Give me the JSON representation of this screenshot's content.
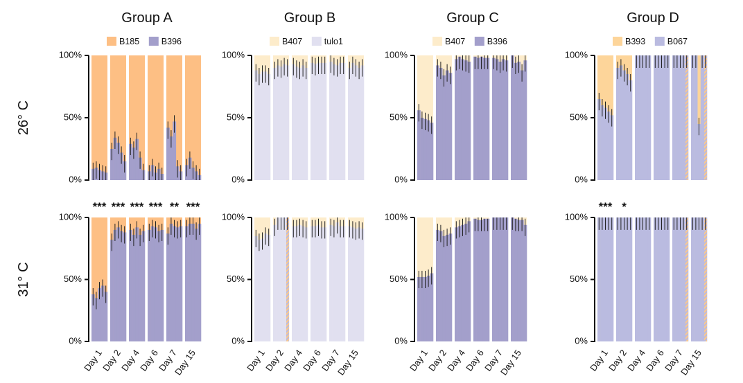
{
  "chart_data": {
    "type": "bar",
    "stacked": true,
    "percent": true,
    "yticks": [
      "0%",
      "50%",
      "100%"
    ],
    "ylim": [
      0,
      100
    ],
    "row_labels": [
      "26° C",
      "31° C"
    ],
    "categories": [
      "Day 1",
      "Day 2",
      "Day 4",
      "Day 6",
      "Day 7",
      "Day 15"
    ],
    "colors": {
      "B185": "#fdbf84",
      "B396": "#a39fcb",
      "B407": "#fdeccb",
      "tulo1": "#e1e0f0",
      "B393": "#fdd59a",
      "B067": "#babbe0"
    },
    "panels": [
      {
        "group": "Group A",
        "row": 0,
        "legend": [
          "B185",
          "B396"
        ],
        "bottom_series": "B396",
        "values": [
          [
            9,
            10,
            8,
            7,
            6
          ],
          [
            25,
            34,
            30,
            22,
            15
          ],
          [
            29,
            26,
            33,
            18,
            8
          ],
          [
            7,
            12,
            6,
            9,
            5
          ],
          [
            42,
            35,
            47,
            11,
            7
          ],
          [
            12,
            18,
            10,
            7,
            4
          ]
        ],
        "significance": [
          "***",
          "***",
          "***",
          "***",
          "**",
          "***"
        ]
      },
      {
        "group": "Group A",
        "row": 1,
        "legend": [
          "B185",
          "B396"
        ],
        "bottom_series": "B396",
        "values": [
          [
            38,
            35,
            43,
            45,
            40
          ],
          [
            82,
            90,
            92,
            89,
            88
          ],
          [
            90,
            86,
            92,
            86,
            89
          ],
          [
            90,
            93,
            92,
            89,
            90
          ],
          [
            87,
            95,
            93,
            92,
            93
          ],
          [
            93,
            95,
            95,
            91,
            95
          ]
        ],
        "significance": []
      },
      {
        "group": "Group B",
        "row": 0,
        "legend": [
          "B407",
          "tulo1"
        ],
        "bottom_series": "tulo1",
        "values": [
          [
            88,
            85,
            87,
            87,
            85
          ],
          [
            90,
            92,
            91,
            93,
            92
          ],
          [
            93,
            91,
            90,
            92,
            90
          ],
          [
            94,
            93,
            94,
            94,
            94
          ],
          [
            95,
            93,
            92,
            94,
            94
          ],
          [
            90,
            94,
            92,
            90,
            92
          ]
        ],
        "significance": []
      },
      {
        "group": "Group B",
        "row": 1,
        "legend": [
          "B407",
          "tulo1"
        ],
        "bottom_series": "tulo1",
        "values": [
          [
            85,
            82,
            83,
            87,
            86
          ],
          [
            94,
            100,
            100,
            100,
            100
          ],
          [
            93,
            93,
            94,
            93,
            92
          ],
          [
            93,
            93,
            94,
            92,
            92
          ],
          [
            94,
            93,
            96,
            93,
            93
          ],
          [
            93,
            92,
            91,
            92,
            91
          ]
        ],
        "significance": []
      },
      {
        "group": "Group C",
        "row": 0,
        "legend": [
          "B407",
          "B396"
        ],
        "bottom_series": "B396",
        "values": [
          [
            56,
            50,
            49,
            48,
            46
          ],
          [
            92,
            90,
            84,
            88,
            86
          ],
          [
            97,
            99,
            97,
            96,
            95
          ],
          [
            99,
            98,
            99,
            98,
            98
          ],
          [
            98,
            97,
            95,
            97,
            96
          ],
          [
            100,
            94,
            95,
            88,
            96
          ]
        ],
        "significance": []
      },
      {
        "group": "Group C",
        "row": 1,
        "legend": [
          "B407",
          "B396"
        ],
        "bottom_series": "B396",
        "values": [
          [
            52,
            52,
            52,
            53,
            55
          ],
          [
            90,
            89,
            85,
            86,
            87
          ],
          [
            92,
            93,
            94,
            95,
            97
          ],
          [
            99,
            98,
            98,
            99,
            99
          ],
          [
            100,
            100,
            100,
            100,
            100
          ],
          [
            100,
            99,
            98,
            98,
            94
          ]
        ],
        "significance": []
      },
      {
        "group": "Group D",
        "row": 0,
        "legend": [
          "B393",
          "B067"
        ],
        "bottom_series": "B067",
        "values": [
          [
            65,
            60,
            58,
            55,
            52
          ],
          [
            90,
            92,
            88,
            85,
            80
          ],
          [
            100,
            100,
            100,
            100,
            100
          ],
          [
            100,
            100,
            100,
            100,
            100
          ],
          [
            100,
            100,
            100,
            100,
            100
          ],
          [
            100,
            100,
            45,
            100,
            100
          ]
        ],
        "significance": [
          "***",
          "*",
          "",
          "",
          "",
          ""
        ]
      },
      {
        "group": "Group D",
        "row": 1,
        "legend": [
          "B393",
          "B067"
        ],
        "bottom_series": "B067",
        "values": [
          [
            100,
            100,
            100,
            100,
            100
          ],
          [
            100,
            100,
            100,
            100,
            100
          ],
          [
            100,
            100,
            100,
            100,
            100
          ],
          [
            100,
            100,
            100,
            100,
            100
          ],
          [
            100,
            100,
            100,
            100,
            100
          ],
          [
            100,
            100,
            100,
            100,
            100
          ]
        ],
        "significance": []
      }
    ]
  }
}
